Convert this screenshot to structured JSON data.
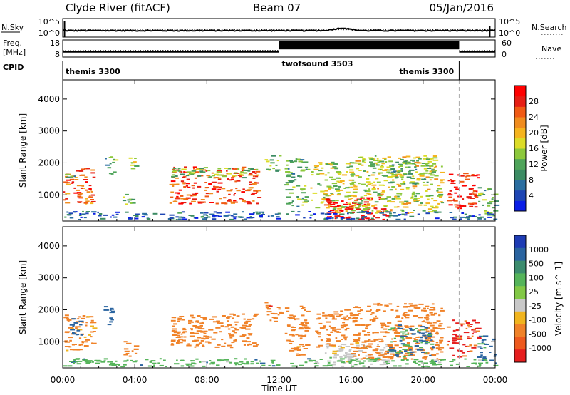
{
  "header": {
    "station": "Clyde River (fitACF)",
    "beam": "Beam 07",
    "date": "05/Jan/2016"
  },
  "noise_panel": {
    "left_label": "N.Sky",
    "left_ticks": [
      "10^5",
      "10^0"
    ],
    "right_ticks": [
      "10^5",
      "10^0"
    ],
    "right_label": "N.Search"
  },
  "freq_panel": {
    "left_label_line1": "Freq.",
    "left_label_line2": "[MHz]",
    "left_ticks": [
      "18",
      "8"
    ],
    "right_ticks": [
      "60",
      "0"
    ],
    "right_label": "Nave"
  },
  "cpid": {
    "label": "CPID",
    "segments": [
      {
        "name": "themis 3300",
        "start_hour": 0,
        "end_hour": 12
      },
      {
        "name": "twofsound 3503",
        "start_hour": 12,
        "end_hour": 22
      },
      {
        "name": "themis 3300",
        "start_hour": 22,
        "end_hour": 24
      }
    ]
  },
  "colors": {
    "power_scale": [
      "#0a1ee6",
      "#1e46b4",
      "#2a6ea0",
      "#3c8c64",
      "#4fa45a",
      "#8cc83c",
      "#dcdc28",
      "#f5b41e",
      "#f08c1e",
      "#f05a14",
      "#e61e14",
      "#ff0000"
    ],
    "velocity_scale": [
      "#1e3cb4",
      "#2a64a0",
      "#3c8c6e",
      "#55b45a",
      "#82c846",
      "#c8c8c8",
      "#f0b41e",
      "#f08228",
      "#ee5a1e",
      "#e61e1e"
    ]
  },
  "chart_data": [
    {
      "type": "heatmap",
      "title": "",
      "xlabel": "",
      "ylabel": "Slant Range [km]",
      "xlim": [
        0,
        24
      ],
      "ylim": [
        180,
        4600
      ],
      "x_ticks": [
        "00:00",
        "04:00",
        "08:00",
        "12:00",
        "16:00",
        "20:00",
        "00:00"
      ],
      "x_tick_hours": [
        0,
        4,
        8,
        12,
        16,
        20,
        24
      ],
      "y_ticks": [
        1000,
        2000,
        3000,
        4000
      ],
      "colorbar": {
        "label": "Power [dB]",
        "range": [
          0,
          32
        ],
        "ticks": [
          4,
          8,
          12,
          16,
          20,
          24,
          28
        ]
      },
      "regions": [
        {
          "t0": 0.0,
          "t1": 1.7,
          "r0": 700,
          "r1": 1850,
          "v": 25
        },
        {
          "t0": 0.0,
          "t1": 1.0,
          "r0": 1500,
          "r1": 1650,
          "v": 12
        },
        {
          "t0": 2.2,
          "t1": 2.8,
          "r0": 1600,
          "r1": 2200,
          "v": 12
        },
        {
          "t0": 3.3,
          "t1": 4.0,
          "r0": 500,
          "r1": 1000,
          "v": 14
        },
        {
          "t0": 3.5,
          "t1": 4.0,
          "r0": 1700,
          "r1": 2200,
          "v": 16
        },
        {
          "t0": 5.9,
          "t1": 10.8,
          "r0": 700,
          "r1": 1850,
          "v": 26
        },
        {
          "t0": 6.0,
          "t1": 10.8,
          "r0": 1500,
          "r1": 1850,
          "v": 14
        },
        {
          "t0": 11.2,
          "t1": 12.0,
          "r0": 1700,
          "r1": 2300,
          "v": 14
        },
        {
          "t0": 12.3,
          "t1": 13.5,
          "r0": 600,
          "r1": 2100,
          "v": 12
        },
        {
          "t0": 13.7,
          "t1": 16.0,
          "r0": 400,
          "r1": 2000,
          "v": 16
        },
        {
          "t0": 14.5,
          "t1": 18.0,
          "r0": 200,
          "r1": 900,
          "v": 31
        },
        {
          "t0": 16.0,
          "t1": 21.0,
          "r0": 400,
          "r1": 2200,
          "v": 17
        },
        {
          "t0": 18.0,
          "t1": 20.5,
          "r0": 1300,
          "r1": 2100,
          "v": 12
        },
        {
          "t0": 21.3,
          "t1": 23.0,
          "r0": 500,
          "r1": 1650,
          "v": 29
        },
        {
          "t0": 23.0,
          "t1": 24.0,
          "r0": 300,
          "r1": 1200,
          "v": 12
        },
        {
          "t0": 0.0,
          "t1": 24.0,
          "r0": 200,
          "r1": 450,
          "v": 6
        }
      ]
    },
    {
      "type": "heatmap",
      "title": "",
      "xlabel": "Time UT",
      "ylabel": "Slant Range [km]",
      "xlim": [
        0,
        24
      ],
      "ylim": [
        180,
        4600
      ],
      "x_ticks": [
        "00:00",
        "04:00",
        "08:00",
        "12:00",
        "16:00",
        "20:00",
        "00:00"
      ],
      "x_tick_hours": [
        0,
        4,
        8,
        12,
        16,
        20,
        24
      ],
      "y_ticks": [
        1000,
        2000,
        3000,
        4000
      ],
      "colorbar": {
        "label": "Velocity [m s^-1]",
        "ticks": [
          "1000",
          "500",
          "100",
          "25",
          "-25",
          "-100",
          "-500",
          "-1000"
        ]
      },
      "regions": [
        {
          "t0": 0.0,
          "t1": 1.7,
          "r0": 700,
          "r1": 1850,
          "v": -150
        },
        {
          "t0": 0.3,
          "t1": 1.0,
          "r0": 1100,
          "r1": 1700,
          "v": 200
        },
        {
          "t0": 2.2,
          "t1": 2.8,
          "r0": 1500,
          "r1": 2100,
          "v": 150
        },
        {
          "t0": 3.3,
          "t1": 4.0,
          "r0": 500,
          "r1": 1000,
          "v": -200
        },
        {
          "t0": 5.9,
          "t1": 10.8,
          "r0": 800,
          "r1": 1850,
          "v": -300
        },
        {
          "t0": 11.2,
          "t1": 12.0,
          "r0": 1600,
          "r1": 2300,
          "v": -400
        },
        {
          "t0": 12.3,
          "t1": 13.5,
          "r0": 500,
          "r1": 2100,
          "v": -200
        },
        {
          "t0": 14.0,
          "t1": 16.0,
          "r0": 800,
          "r1": 2000,
          "v": -250
        },
        {
          "t0": 14.5,
          "t1": 18.0,
          "r0": 250,
          "r1": 900,
          "v": 0
        },
        {
          "t0": 16.0,
          "t1": 21.0,
          "r0": 400,
          "r1": 2200,
          "v": -200
        },
        {
          "t0": 18.0,
          "t1": 20.5,
          "r0": 500,
          "r1": 1500,
          "v": 120
        },
        {
          "t0": 21.3,
          "t1": 23.0,
          "r0": 500,
          "r1": 1650,
          "v": -600
        },
        {
          "t0": 23.0,
          "t1": 24.0,
          "r0": 300,
          "r1": 1200,
          "v": 150
        },
        {
          "t0": 0.0,
          "t1": 24.0,
          "r0": 200,
          "r1": 450,
          "v": 60
        }
      ]
    }
  ],
  "noise_series": {
    "sky_level": 0.35,
    "search_level": 0.4,
    "sky_bump_hour": 15.5
  },
  "freq_series": {
    "segments": [
      {
        "t0": 0,
        "t1": 12,
        "freq_level": 0.3,
        "nave_level": 0.3
      },
      {
        "t0": 12,
        "t1": 22,
        "freq_level": 0.7,
        "nave_level": 0.7
      },
      {
        "t0": 22,
        "t1": 24,
        "freq_level": 0.3,
        "nave_level": 0.3
      }
    ]
  }
}
